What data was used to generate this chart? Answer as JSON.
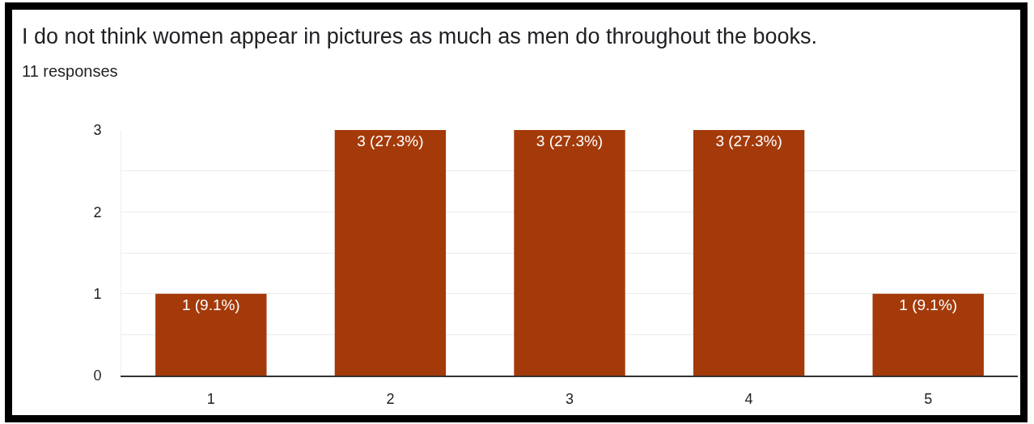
{
  "chart_data": {
    "type": "bar",
    "title": "I do not think women appear in pictures as much as men do throughout the books.",
    "subtitle": "11 responses",
    "categories": [
      "1",
      "2",
      "3",
      "4",
      "5"
    ],
    "values": [
      1,
      3,
      3,
      3,
      1
    ],
    "value_labels": [
      "1 (9.1%)",
      "3 (27.3%)",
      "3 (27.3%)",
      "3 (27.3%)",
      "1 (9.1%)"
    ],
    "color": "#a43a0a",
    "ylim": [
      0,
      3
    ],
    "yticks": [
      0,
      {
        "value": 0.5,
        "label": null
      },
      1,
      {
        "value": 1.5,
        "label": null
      },
      2,
      {
        "value": 2.5,
        "label": null
      },
      3
    ],
    "grid": "y"
  }
}
